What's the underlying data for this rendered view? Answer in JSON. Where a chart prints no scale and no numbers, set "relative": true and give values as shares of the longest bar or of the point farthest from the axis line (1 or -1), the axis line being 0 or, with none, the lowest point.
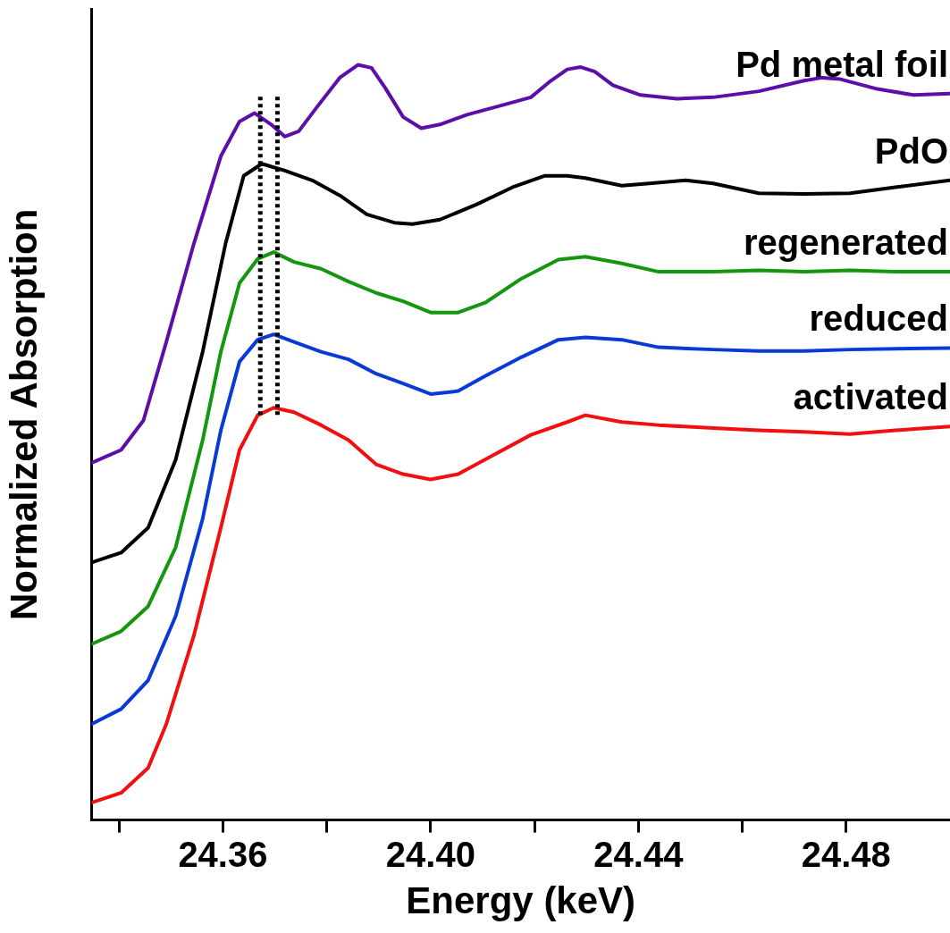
{
  "chart_data": {
    "type": "line",
    "relative": true,
    "xlabel": "Energy (keV)",
    "ylabel": "Normalized Absorption",
    "xlim": [
      24.3347,
      24.5
    ],
    "xticks": [
      {
        "value": 24.34,
        "label": null
      },
      {
        "value": 24.36,
        "label": "24.36"
      },
      {
        "value": 24.38,
        "label": null
      },
      {
        "value": 24.4,
        "label": "24.40"
      },
      {
        "value": 24.42,
        "label": null
      },
      {
        "value": 24.44,
        "label": "24.44"
      },
      {
        "value": 24.46,
        "label": null
      },
      {
        "value": 24.48,
        "label": "24.48"
      }
    ],
    "tick_labels": "x",
    "grid": false,
    "legend": false,
    "marker": "none",
    "line_style": "solid",
    "ref_lines": [
      {
        "axis": "x",
        "value": 24.3672,
        "color": "#000000",
        "line_style": "dotted"
      },
      {
        "axis": "x",
        "value": 24.3705,
        "color": "#000000",
        "line_style": "dotted"
      }
    ],
    "series": [
      {
        "name": "Pd metal foil",
        "color": "#5b0fa8",
        "x": [
          24.3347,
          24.3404,
          24.3447,
          24.3491,
          24.3544,
          24.3596,
          24.3632,
          24.3661,
          24.3693,
          24.3719,
          24.3746,
          24.3781,
          24.3825,
          24.386,
          24.3886,
          24.3912,
          24.3947,
          24.3982,
          24.4018,
          24.407,
          24.414,
          24.4193,
          24.4228,
          24.4263,
          24.4289,
          24.4316,
          24.4351,
          24.4404,
          24.4474,
          24.4544,
          24.4632,
          24.4719,
          24.4754,
          24.4789,
          24.486,
          24.493,
          24.5
        ],
        "values": [
          0.473,
          0.49,
          0.529,
          0.633,
          0.763,
          0.879,
          0.925,
          0.936,
          0.921,
          0.905,
          0.912,
          0.944,
          0.983,
          1.0,
          0.996,
          0.97,
          0.931,
          0.916,
          0.921,
          0.934,
          0.947,
          0.957,
          0.977,
          0.994,
          0.997,
          0.991,
          0.973,
          0.96,
          0.955,
          0.957,
          0.965,
          0.979,
          0.983,
          0.981,
          0.968,
          0.96,
          0.962
        ]
      },
      {
        "name": "PdO",
        "color": "#000000",
        "x": [
          24.3347,
          24.3404,
          24.3456,
          24.3509,
          24.3561,
          24.3605,
          24.364,
          24.3675,
          24.3719,
          24.3772,
          24.3825,
          24.3877,
          24.393,
          24.3965,
          24.4018,
          24.4088,
          24.4158,
          24.4219,
          24.4263,
          24.4298,
          24.4368,
          24.4421,
          24.4491,
          24.4544,
          24.4632,
          24.4719,
          24.4807,
          24.4895,
          24.5
        ],
        "values": [
          0.341,
          0.354,
          0.387,
          0.477,
          0.62,
          0.763,
          0.853,
          0.869,
          0.86,
          0.847,
          0.827,
          0.802,
          0.791,
          0.789,
          0.795,
          0.815,
          0.838,
          0.853,
          0.853,
          0.85,
          0.84,
          0.843,
          0.847,
          0.843,
          0.83,
          0.829,
          0.83,
          0.838,
          0.847
        ]
      },
      {
        "name": "regenerated",
        "color": "#14960f",
        "x": [
          24.3347,
          24.3404,
          24.3456,
          24.3509,
          24.3561,
          24.3596,
          24.3632,
          24.3667,
          24.3698,
          24.3737,
          24.3789,
          24.3842,
          24.3895,
          24.3947,
          24.4,
          24.4053,
          24.4105,
          24.4175,
          24.4246,
          24.4298,
          24.4368,
          24.4439,
          24.4544,
          24.4632,
          24.4719,
          24.4807,
          24.4895,
          24.5
        ],
        "values": [
          0.233,
          0.25,
          0.283,
          0.361,
          0.503,
          0.62,
          0.711,
          0.743,
          0.752,
          0.739,
          0.73,
          0.713,
          0.698,
          0.687,
          0.672,
          0.672,
          0.685,
          0.717,
          0.742,
          0.746,
          0.737,
          0.726,
          0.726,
          0.728,
          0.726,
          0.728,
          0.726,
          0.726
        ]
      },
      {
        "name": "reduced",
        "color": "#0a3ad6",
        "x": [
          24.3347,
          24.3404,
          24.3456,
          24.3509,
          24.3561,
          24.3596,
          24.3632,
          24.3667,
          24.3698,
          24.3737,
          24.3789,
          24.3842,
          24.3895,
          24.3947,
          24.4,
          24.4053,
          24.4105,
          24.4175,
          24.4246,
          24.4298,
          24.4368,
          24.4439,
          24.4544,
          24.4632,
          24.4719,
          24.4807,
          24.4895,
          24.5
        ],
        "values": [
          0.127,
          0.147,
          0.185,
          0.27,
          0.399,
          0.516,
          0.607,
          0.636,
          0.643,
          0.633,
          0.62,
          0.61,
          0.591,
          0.578,
          0.564,
          0.568,
          0.588,
          0.613,
          0.636,
          0.639,
          0.636,
          0.626,
          0.623,
          0.621,
          0.621,
          0.623,
          0.624,
          0.625
        ]
      },
      {
        "name": "activated",
        "color": "#f01010",
        "x": [
          24.3347,
          24.3404,
          24.3456,
          24.3491,
          24.3544,
          24.3596,
          24.3632,
          24.3667,
          24.3698,
          24.3737,
          24.3789,
          24.3842,
          24.3895,
          24.3947,
          24.4,
          24.4053,
          24.4123,
          24.4193,
          24.4263,
          24.4298,
          24.4368,
          24.4439,
          24.4544,
          24.4632,
          24.4719,
          24.4807,
          24.4895,
          24.5
        ],
        "values": [
          0.023,
          0.036,
          0.069,
          0.127,
          0.244,
          0.387,
          0.49,
          0.536,
          0.546,
          0.54,
          0.523,
          0.503,
          0.471,
          0.458,
          0.451,
          0.458,
          0.484,
          0.51,
          0.527,
          0.536,
          0.527,
          0.523,
          0.519,
          0.516,
          0.514,
          0.511,
          0.516,
          0.521
        ]
      }
    ]
  }
}
